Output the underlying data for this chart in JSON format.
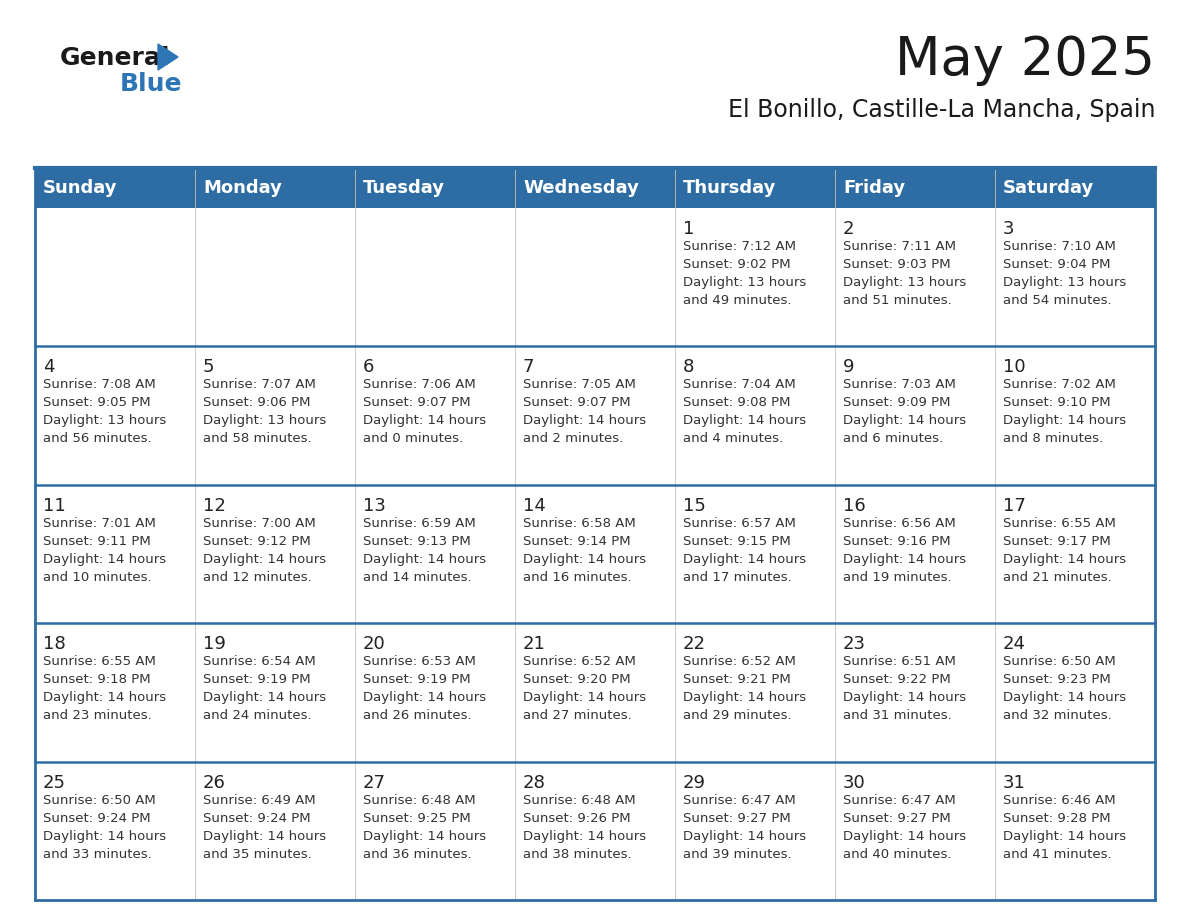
{
  "title": "May 2025",
  "subtitle": "El Bonillo, Castille-La Mancha, Spain",
  "days_of_week": [
    "Sunday",
    "Monday",
    "Tuesday",
    "Wednesday",
    "Thursday",
    "Friday",
    "Saturday"
  ],
  "header_bg": "#2E6DA4",
  "header_text_color": "#FFFFFF",
  "cell_bg": "#FFFFFF",
  "cell_border_color": "#2E6DA4",
  "row_sep_color": "#2E6DA4",
  "day_num_color": "#222222",
  "cell_text_color": "#333333",
  "title_color": "#1a1a1a",
  "logo_general_color": "#1a1a1a",
  "logo_blue_color": "#2E75B6",
  "calendar_data": [
    [
      null,
      null,
      null,
      null,
      {
        "day": "1",
        "sunrise": "7:12 AM",
        "sunset": "9:02 PM",
        "daylight_line1": "13 hours",
        "daylight_line2": "and 49 minutes."
      },
      {
        "day": "2",
        "sunrise": "7:11 AM",
        "sunset": "9:03 PM",
        "daylight_line1": "13 hours",
        "daylight_line2": "and 51 minutes."
      },
      {
        "day": "3",
        "sunrise": "7:10 AM",
        "sunset": "9:04 PM",
        "daylight_line1": "13 hours",
        "daylight_line2": "and 54 minutes."
      }
    ],
    [
      {
        "day": "4",
        "sunrise": "7:08 AM",
        "sunset": "9:05 PM",
        "daylight_line1": "13 hours",
        "daylight_line2": "and 56 minutes."
      },
      {
        "day": "5",
        "sunrise": "7:07 AM",
        "sunset": "9:06 PM",
        "daylight_line1": "13 hours",
        "daylight_line2": "and 58 minutes."
      },
      {
        "day": "6",
        "sunrise": "7:06 AM",
        "sunset": "9:07 PM",
        "daylight_line1": "14 hours",
        "daylight_line2": "and 0 minutes."
      },
      {
        "day": "7",
        "sunrise": "7:05 AM",
        "sunset": "9:07 PM",
        "daylight_line1": "14 hours",
        "daylight_line2": "and 2 minutes."
      },
      {
        "day": "8",
        "sunrise": "7:04 AM",
        "sunset": "9:08 PM",
        "daylight_line1": "14 hours",
        "daylight_line2": "and 4 minutes."
      },
      {
        "day": "9",
        "sunrise": "7:03 AM",
        "sunset": "9:09 PM",
        "daylight_line1": "14 hours",
        "daylight_line2": "and 6 minutes."
      },
      {
        "day": "10",
        "sunrise": "7:02 AM",
        "sunset": "9:10 PM",
        "daylight_line1": "14 hours",
        "daylight_line2": "and 8 minutes."
      }
    ],
    [
      {
        "day": "11",
        "sunrise": "7:01 AM",
        "sunset": "9:11 PM",
        "daylight_line1": "14 hours",
        "daylight_line2": "and 10 minutes."
      },
      {
        "day": "12",
        "sunrise": "7:00 AM",
        "sunset": "9:12 PM",
        "daylight_line1": "14 hours",
        "daylight_line2": "and 12 minutes."
      },
      {
        "day": "13",
        "sunrise": "6:59 AM",
        "sunset": "9:13 PM",
        "daylight_line1": "14 hours",
        "daylight_line2": "and 14 minutes."
      },
      {
        "day": "14",
        "sunrise": "6:58 AM",
        "sunset": "9:14 PM",
        "daylight_line1": "14 hours",
        "daylight_line2": "and 16 minutes."
      },
      {
        "day": "15",
        "sunrise": "6:57 AM",
        "sunset": "9:15 PM",
        "daylight_line1": "14 hours",
        "daylight_line2": "and 17 minutes."
      },
      {
        "day": "16",
        "sunrise": "6:56 AM",
        "sunset": "9:16 PM",
        "daylight_line1": "14 hours",
        "daylight_line2": "and 19 minutes."
      },
      {
        "day": "17",
        "sunrise": "6:55 AM",
        "sunset": "9:17 PM",
        "daylight_line1": "14 hours",
        "daylight_line2": "and 21 minutes."
      }
    ],
    [
      {
        "day": "18",
        "sunrise": "6:55 AM",
        "sunset": "9:18 PM",
        "daylight_line1": "14 hours",
        "daylight_line2": "and 23 minutes."
      },
      {
        "day": "19",
        "sunrise": "6:54 AM",
        "sunset": "9:19 PM",
        "daylight_line1": "14 hours",
        "daylight_line2": "and 24 minutes."
      },
      {
        "day": "20",
        "sunrise": "6:53 AM",
        "sunset": "9:19 PM",
        "daylight_line1": "14 hours",
        "daylight_line2": "and 26 minutes."
      },
      {
        "day": "21",
        "sunrise": "6:52 AM",
        "sunset": "9:20 PM",
        "daylight_line1": "14 hours",
        "daylight_line2": "and 27 minutes."
      },
      {
        "day": "22",
        "sunrise": "6:52 AM",
        "sunset": "9:21 PM",
        "daylight_line1": "14 hours",
        "daylight_line2": "and 29 minutes."
      },
      {
        "day": "23",
        "sunrise": "6:51 AM",
        "sunset": "9:22 PM",
        "daylight_line1": "14 hours",
        "daylight_line2": "and 31 minutes."
      },
      {
        "day": "24",
        "sunrise": "6:50 AM",
        "sunset": "9:23 PM",
        "daylight_line1": "14 hours",
        "daylight_line2": "and 32 minutes."
      }
    ],
    [
      {
        "day": "25",
        "sunrise": "6:50 AM",
        "sunset": "9:24 PM",
        "daylight_line1": "14 hours",
        "daylight_line2": "and 33 minutes."
      },
      {
        "day": "26",
        "sunrise": "6:49 AM",
        "sunset": "9:24 PM",
        "daylight_line1": "14 hours",
        "daylight_line2": "and 35 minutes."
      },
      {
        "day": "27",
        "sunrise": "6:48 AM",
        "sunset": "9:25 PM",
        "daylight_line1": "14 hours",
        "daylight_line2": "and 36 minutes."
      },
      {
        "day": "28",
        "sunrise": "6:48 AM",
        "sunset": "9:26 PM",
        "daylight_line1": "14 hours",
        "daylight_line2": "and 38 minutes."
      },
      {
        "day": "29",
        "sunrise": "6:47 AM",
        "sunset": "9:27 PM",
        "daylight_line1": "14 hours",
        "daylight_line2": "and 39 minutes."
      },
      {
        "day": "30",
        "sunrise": "6:47 AM",
        "sunset": "9:27 PM",
        "daylight_line1": "14 hours",
        "daylight_line2": "and 40 minutes."
      },
      {
        "day": "31",
        "sunrise": "6:46 AM",
        "sunset": "9:28 PM",
        "daylight_line1": "14 hours",
        "daylight_line2": "and 41 minutes."
      }
    ]
  ]
}
